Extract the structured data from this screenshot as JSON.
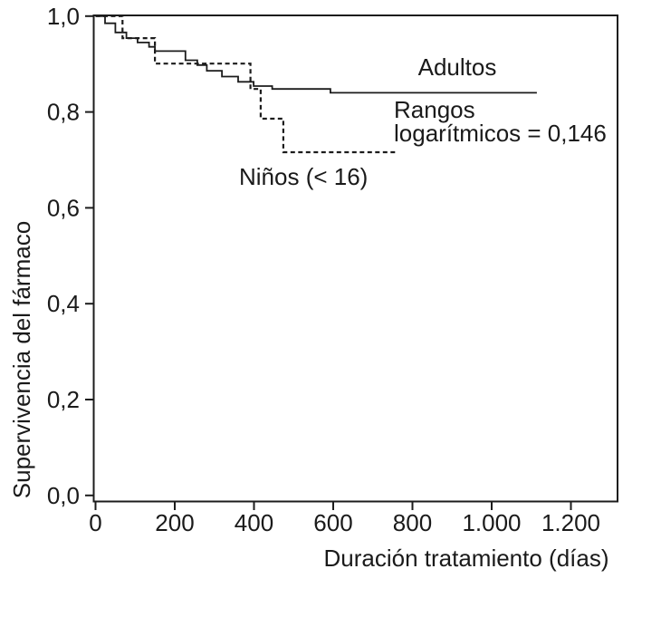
{
  "chart_data": {
    "type": "line",
    "subtype": "kaplan-meier-step",
    "title": "",
    "xlabel": "Duración tratamiento (días)",
    "ylabel": "Supervivencia del fármaco",
    "xlim": [
      0,
      1320
    ],
    "ylim": [
      0.0,
      1.0
    ],
    "x_ticks": [
      0,
      200,
      400,
      600,
      800,
      1000,
      1200
    ],
    "x_tick_labels": [
      "0",
      "200",
      "400",
      "600",
      "800",
      "1.000",
      "1.200"
    ],
    "y_ticks": [
      1.0,
      0.8,
      0.6,
      0.4,
      0.2,
      0.0
    ],
    "y_tick_labels": [
      "1,0",
      "0,8",
      "0,6",
      "0,4",
      "0,2",
      "0,0"
    ],
    "grid": false,
    "frame": true,
    "legend_position": "direct-labels-inside-plot",
    "line_color": "#1c1c1c",
    "series": [
      {
        "name": "Adultos",
        "line_style": "solid",
        "steps": [
          [
            0,
            1.0
          ],
          [
            24,
            0.985
          ],
          [
            50,
            0.966
          ],
          [
            78,
            0.954
          ],
          [
            106,
            0.945
          ],
          [
            135,
            0.936
          ],
          [
            150,
            0.927
          ],
          [
            227,
            0.908
          ],
          [
            257,
            0.898
          ],
          [
            281,
            0.886
          ],
          [
            319,
            0.874
          ],
          [
            360,
            0.863
          ],
          [
            399,
            0.854
          ],
          [
            446,
            0.848
          ],
          [
            593,
            0.84
          ]
        ],
        "end_x": 1114
      },
      {
        "name": "Niños (< 16)",
        "line_style": "dashed",
        "steps": [
          [
            0,
            1.0
          ],
          [
            68,
            0.954
          ],
          [
            150,
            0.901
          ],
          [
            391,
            0.848
          ],
          [
            417,
            0.786
          ],
          [
            474,
            0.716
          ]
        ],
        "end_x": 760
      }
    ],
    "annotations": {
      "adultos_label": "Adultos",
      "stat_line1": "Rangos",
      "stat_line2": "logarítmicos = 0,146",
      "ninos_label": "Niños (< 16)"
    }
  }
}
